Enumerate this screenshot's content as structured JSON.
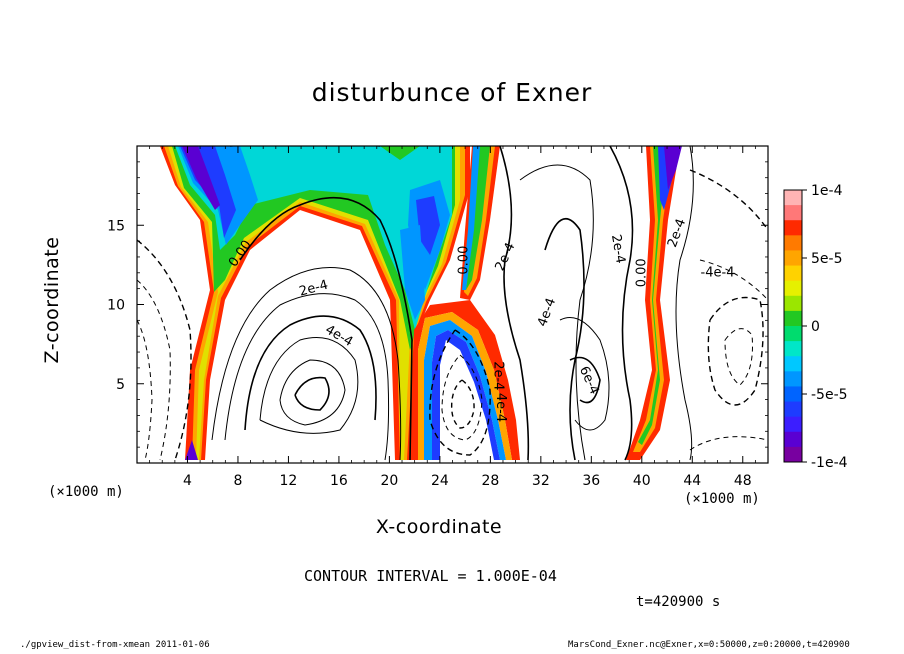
{
  "chart_data": {
    "type": "heatmap",
    "title": "disturbunce of Exner",
    "xlabel": "X-coordinate",
    "ylabel": "Z-coordinate",
    "x_unit": "(×1000 m)",
    "x_ticks": [
      4,
      8,
      12,
      16,
      20,
      24,
      28,
      32,
      36,
      40,
      44,
      48
    ],
    "y_ticks": [
      5,
      10,
      15
    ],
    "xlim": [
      0,
      50
    ],
    "ylim": [
      0,
      20
    ],
    "colorbar": {
      "range": [
        -0.0001,
        0.0001
      ],
      "tick_labels": [
        "1e-4",
        "5e-5",
        "0",
        "-5e-5",
        "-1e-4"
      ],
      "tick_values": [
        0.0001,
        5e-05,
        0,
        -5e-05,
        -0.0001
      ]
    },
    "contour_interval": "CONTOUR INTERVAL = 1.000E-04",
    "contour_labels": [
      {
        "text": "0.00",
        "x": 8.2,
        "y": 13.2,
        "angle": -55
      },
      {
        "text": "2e-4",
        "x": 14.0,
        "y": 11.0,
        "angle": -15
      },
      {
        "text": "4e-4",
        "x": 16.0,
        "y": 8.0,
        "angle": 30
      },
      {
        "text": "0.00",
        "x": 25.9,
        "y": 12.8,
        "angle": -90
      },
      {
        "text": "2e-4",
        "x": 29.2,
        "y": 13.0,
        "angle": -65
      },
      {
        "text": "4e-4",
        "x": 32.5,
        "y": 9.5,
        "angle": -70
      },
      {
        "text": "6e-4",
        "x": 35.8,
        "y": 5.2,
        "angle": 65
      },
      {
        "text": "2e-4",
        "x": 38.1,
        "y": 13.5,
        "angle": 80
      },
      {
        "text": "0.00",
        "x": 40.0,
        "y": 12.0,
        "angle": -90
      },
      {
        "text": "2e-4",
        "x": 42.8,
        "y": 14.5,
        "angle": -70
      },
      {
        "text": "-4e-4",
        "x": 46.0,
        "y": 12.0,
        "angle": 0
      },
      {
        "text": "2e-4",
        "x": 28.6,
        "y": 5.5,
        "angle": 90
      },
      {
        "text": "4e-4",
        "x": 28.8,
        "y": 3.5,
        "angle": 90
      }
    ]
  },
  "time_label": "t=420900 s",
  "footer_left": "./gpview_dist-from-xmean  2011-01-06",
  "footer_right": "MarsCond_Exner.nc@Exner,x=0:50000,z=0:20000,t=420900"
}
